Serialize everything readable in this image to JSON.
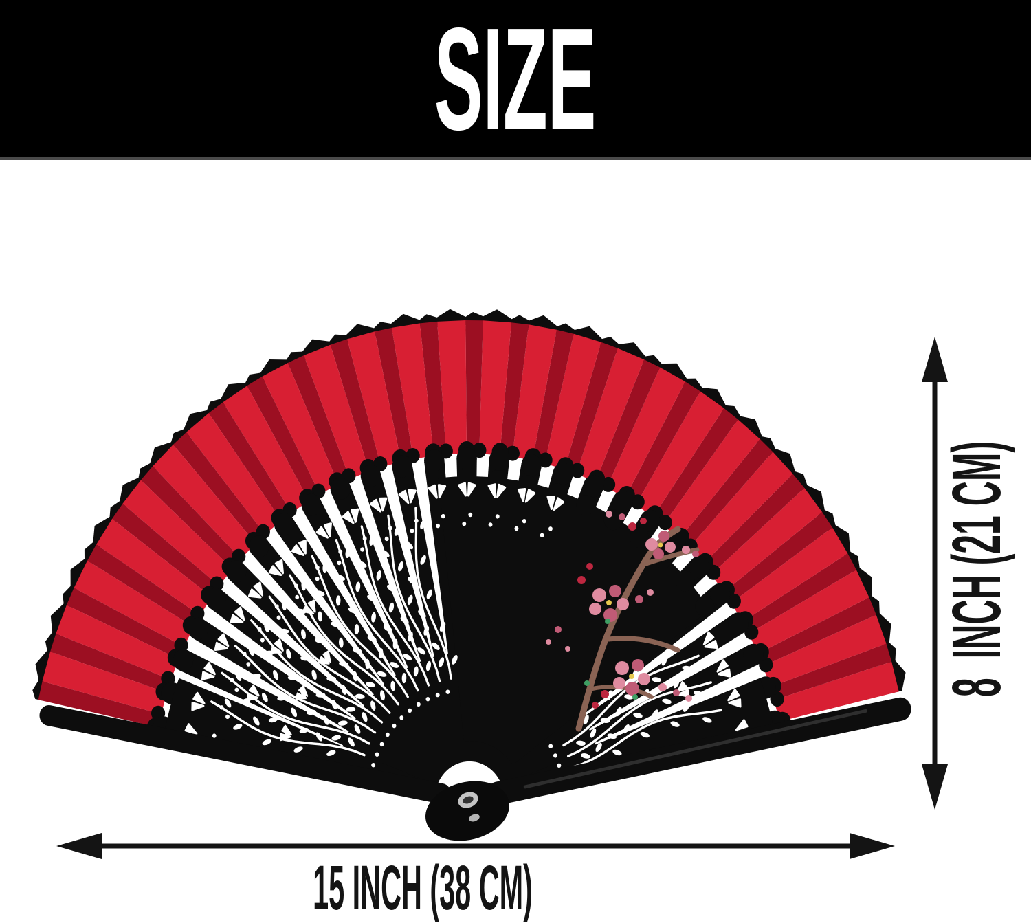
{
  "header": {
    "title": "SIZE",
    "bar_color": "#000000",
    "title_color": "#ffffff"
  },
  "dimensions": {
    "width_label": "15 INCH (38 CM)",
    "height_label": "8  INCH (21 CM)",
    "arrow_color": "#141414"
  },
  "icons": {
    "width_arrow": "double-headed-horizontal-arrow",
    "height_arrow": "double-headed-vertical-arrow"
  },
  "fan": {
    "description": "red and black folding hand fan with plum blossom painting and pierced ribs",
    "colors": {
      "red_bright": "#d81f33",
      "red_dark": "#9c0f22",
      "black": "#0d0d0d",
      "white": "#ffffff",
      "branch_brown": "#8a6354",
      "blossom_pink": "#df8ba0",
      "blossom_deep_pink": "#c05b76",
      "blossom_red": "#bd2740",
      "blossom_green": "#3f9e63",
      "blossom_yellow": "#e7c84e",
      "rivet_silver": "#c4c4c4"
    },
    "rib_count": 27,
    "pleat_count": 26,
    "pleat_start_deg": 13,
    "pleat_end_deg": 168,
    "inner_radius": 503,
    "outer_radius": 697,
    "rib_tip_radius": 496
  }
}
